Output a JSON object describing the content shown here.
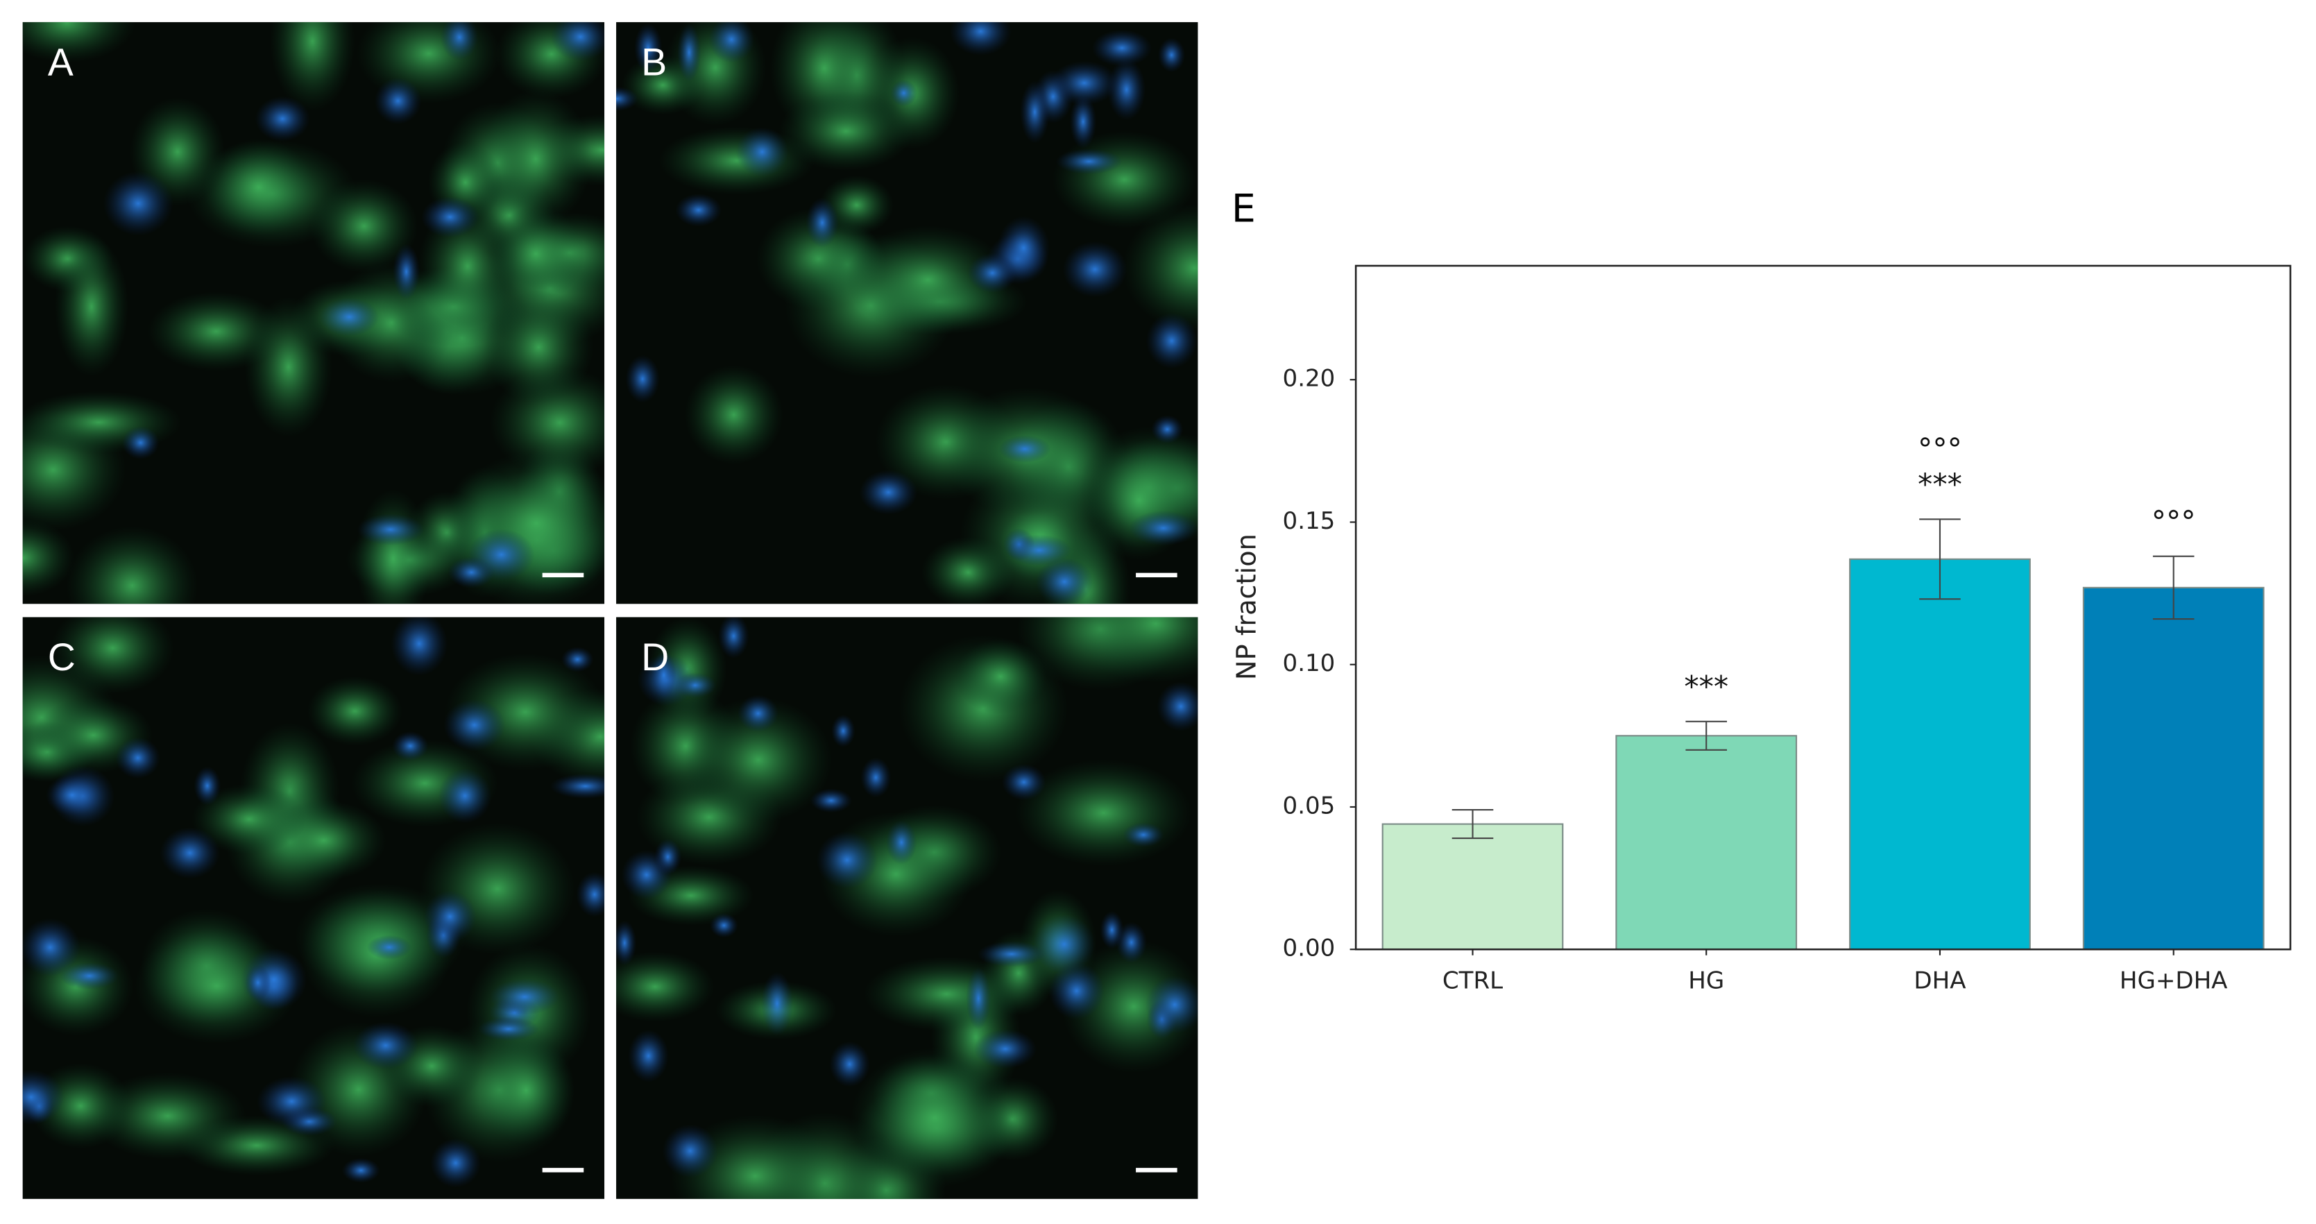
{
  "panels": [
    {
      "label": "A"
    },
    {
      "label": "B"
    },
    {
      "label": "C"
    },
    {
      "label": "D"
    }
  ],
  "chart_data": {
    "type": "bar",
    "panel_label": "E",
    "ylabel": "NP fraction",
    "categories": [
      "CTRL",
      "HG",
      "DHA",
      "HG+DHA"
    ],
    "values": [
      0.044,
      0.075,
      0.137,
      0.127
    ],
    "errors": [
      0.005,
      0.005,
      0.014,
      0.011
    ],
    "colors": [
      "#c7eccc",
      "#7fd8b6",
      "#00b8d0",
      "#0080b8"
    ],
    "ylim": [
      0,
      0.24
    ],
    "yticks": [
      {
        "value": 0,
        "label": "0.00"
      },
      {
        "value": 0.05,
        "label": "0.05"
      },
      {
        "value": 0.1,
        "label": "0.10"
      },
      {
        "value": 0.15,
        "label": "0.15"
      },
      {
        "value": 0.2,
        "label": "0.20"
      }
    ],
    "annotations": [
      {
        "x": "HG",
        "text": "***"
      },
      {
        "x": "DHA",
        "text": "***"
      },
      {
        "x": "DHA",
        "text": "°°°"
      },
      {
        "x": "HG+DHA",
        "text": "°°°"
      }
    ]
  }
}
